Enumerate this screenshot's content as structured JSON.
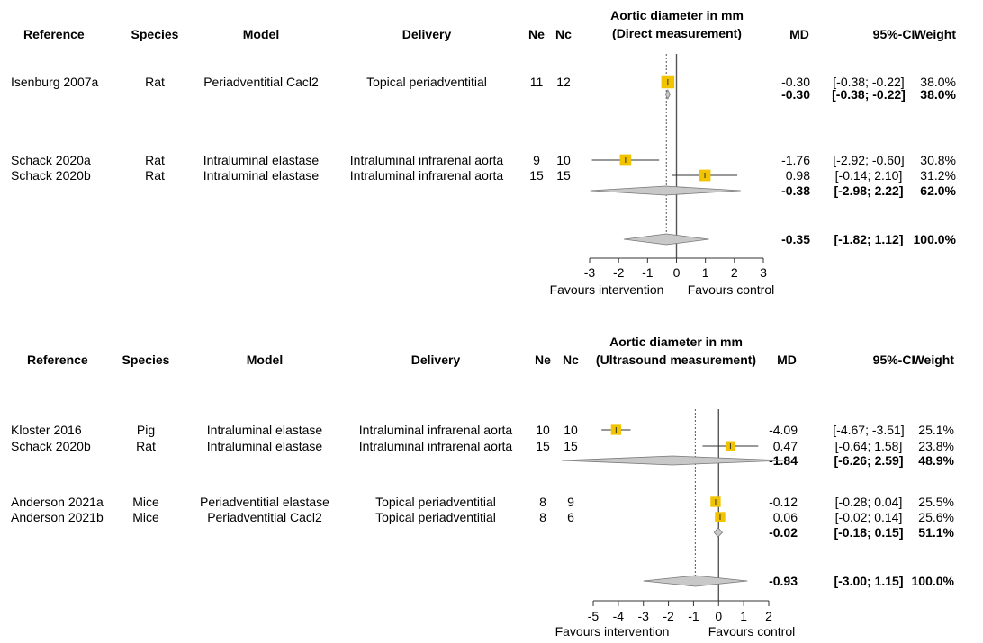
{
  "chart_data": [
    {
      "type": "forest",
      "title": "Aortic diameter in mm",
      "subtitle": "(Direct measurement)",
      "headers": {
        "reference": "Reference",
        "species": "Species",
        "model": "Model",
        "delivery": "Delivery",
        "ne": "Ne",
        "nc": "Nc",
        "md": "MD",
        "ci": "95%-CI",
        "weight": "Weight"
      },
      "rows": [
        {
          "kind": "study",
          "reference": "Isenburg 2007a",
          "species": "Rat",
          "model": "Periadventitial Cacl2",
          "delivery": "Topical periadventitial",
          "ne": "11",
          "nc": "12",
          "md": -0.3,
          "lo": -0.38,
          "hi": -0.22,
          "md_text": "-0.30",
          "ci_text": "[-0.38; -0.22]",
          "weight_text": "38.0%",
          "weight": 38.0
        },
        {
          "kind": "subgroup",
          "md": -0.3,
          "lo": -0.38,
          "hi": -0.22,
          "md_text": "-0.30",
          "ci_text": "[-0.38; -0.22]",
          "weight_text": "38.0%"
        },
        {
          "kind": "study",
          "reference": "Schack 2020a",
          "species": "Rat",
          "model": "Intraluminal elastase",
          "delivery": "Intraluminal infrarenal aorta",
          "ne": "9",
          "nc": "10",
          "md": -1.76,
          "lo": -2.92,
          "hi": -0.6,
          "md_text": "-1.76",
          "ci_text": "[-2.92; -0.60]",
          "weight_text": "30.8%",
          "weight": 30.8
        },
        {
          "kind": "study",
          "reference": "Schack 2020b",
          "species": "Rat",
          "model": "Intraluminal elastase",
          "delivery": "Intraluminal infrarenal aorta",
          "ne": "15",
          "nc": "15",
          "md": 0.98,
          "lo": -0.14,
          "hi": 2.1,
          "md_text": "0.98",
          "ci_text": "[-0.14; 2.10]",
          "weight_text": "31.2%",
          "weight": 31.2
        },
        {
          "kind": "subgroup",
          "md": -0.38,
          "lo": -2.98,
          "hi": 2.22,
          "md_text": "-0.38",
          "ci_text": "[-2.98; 2.22]",
          "weight_text": "62.0%"
        },
        {
          "kind": "overall",
          "md": -0.35,
          "lo": -1.82,
          "hi": 1.12,
          "md_text": "-0.35",
          "ci_text": "[-1.82; 1.12]",
          "weight_text": "100.0%"
        }
      ],
      "xlim": [
        -3,
        3
      ],
      "ticks": [
        "-3",
        "-2",
        "-1",
        "0",
        "1",
        "2",
        "3"
      ],
      "xlabel_left": "Favours intervention",
      "xlabel_right": "Favours control",
      "null_line": 0,
      "overall_line": -0.35,
      "colors": {
        "square": "#f2c400",
        "diamond": "#c8c8c8",
        "subgroup_text": "#a9a9a9"
      }
    },
    {
      "type": "forest",
      "title": "Aortic diameter in mm",
      "subtitle": "(Ultrasound measurement)",
      "headers": {
        "reference": "Reference",
        "species": "Species",
        "model": "Model",
        "delivery": "Delivery",
        "ne": "Ne",
        "nc": "Nc",
        "md": "MD",
        "ci": "95%-CI",
        "weight": "Weight"
      },
      "rows": [
        {
          "kind": "study",
          "reference": "Kloster 2016",
          "species": "Pig",
          "model": "Intraluminal elastase",
          "delivery": "Intraluminal infrarenal aorta",
          "ne": "10",
          "nc": "10",
          "md": -4.09,
          "lo": -4.67,
          "hi": -3.51,
          "md_text": "-4.09",
          "ci_text": "[-4.67; -3.51]",
          "weight_text": "25.1%",
          "weight": 25.1
        },
        {
          "kind": "study",
          "reference": "Schack 2020b",
          "species": "Rat",
          "model": "Intraluminal elastase",
          "delivery": "Intraluminal infrarenal aorta",
          "ne": "15",
          "nc": "15",
          "md": 0.47,
          "lo": -0.64,
          "hi": 1.58,
          "md_text": "0.47",
          "ci_text": "[-0.64; 1.58]",
          "weight_text": "23.8%",
          "weight": 23.8
        },
        {
          "kind": "subgroup",
          "md": -1.84,
          "lo": -6.26,
          "hi": 2.59,
          "md_text": "-1.84",
          "ci_text": "[-6.26; 2.59]",
          "weight_text": "48.9%"
        },
        {
          "kind": "study",
          "reference": "Anderson 2021a",
          "species": "Mice",
          "model": "Periadventitial elastase",
          "delivery": "Topical periadventitial",
          "ne": "8",
          "nc": "9",
          "md": -0.12,
          "lo": -0.28,
          "hi": 0.04,
          "md_text": "-0.12",
          "ci_text": "[-0.28; 0.04]",
          "weight_text": "25.5%",
          "weight": 25.5
        },
        {
          "kind": "study",
          "reference": "Anderson 2021b",
          "species": "Mice",
          "model": "Periadventitial Cacl2",
          "delivery": "Topical periadventitial",
          "ne": "8",
          "nc": "6",
          "md": 0.06,
          "lo": -0.02,
          "hi": 0.14,
          "md_text": "0.06",
          "ci_text": "[-0.02; 0.14]",
          "weight_text": "25.6%",
          "weight": 25.6
        },
        {
          "kind": "subgroup",
          "md": -0.02,
          "lo": -0.18,
          "hi": 0.15,
          "md_text": "-0.02",
          "ci_text": "[-0.18; 0.15]",
          "weight_text": "51.1%"
        },
        {
          "kind": "overall",
          "md": -0.93,
          "lo": -3.0,
          "hi": 1.15,
          "md_text": "-0.93",
          "ci_text": "[-3.00; 1.15]",
          "weight_text": "100.0%"
        }
      ],
      "xlim": [
        -5,
        2
      ],
      "ticks": [
        "-5",
        "-4",
        "-3",
        "-2",
        "-1",
        "0",
        "1",
        "2"
      ],
      "xlabel_left": "Favours intervention",
      "xlabel_right": "Favours control",
      "null_line": 0,
      "overall_line": -0.93,
      "colors": {
        "square": "#f2c400",
        "diamond": "#c8c8c8",
        "subgroup_text": "#a9a9a9"
      }
    }
  ]
}
